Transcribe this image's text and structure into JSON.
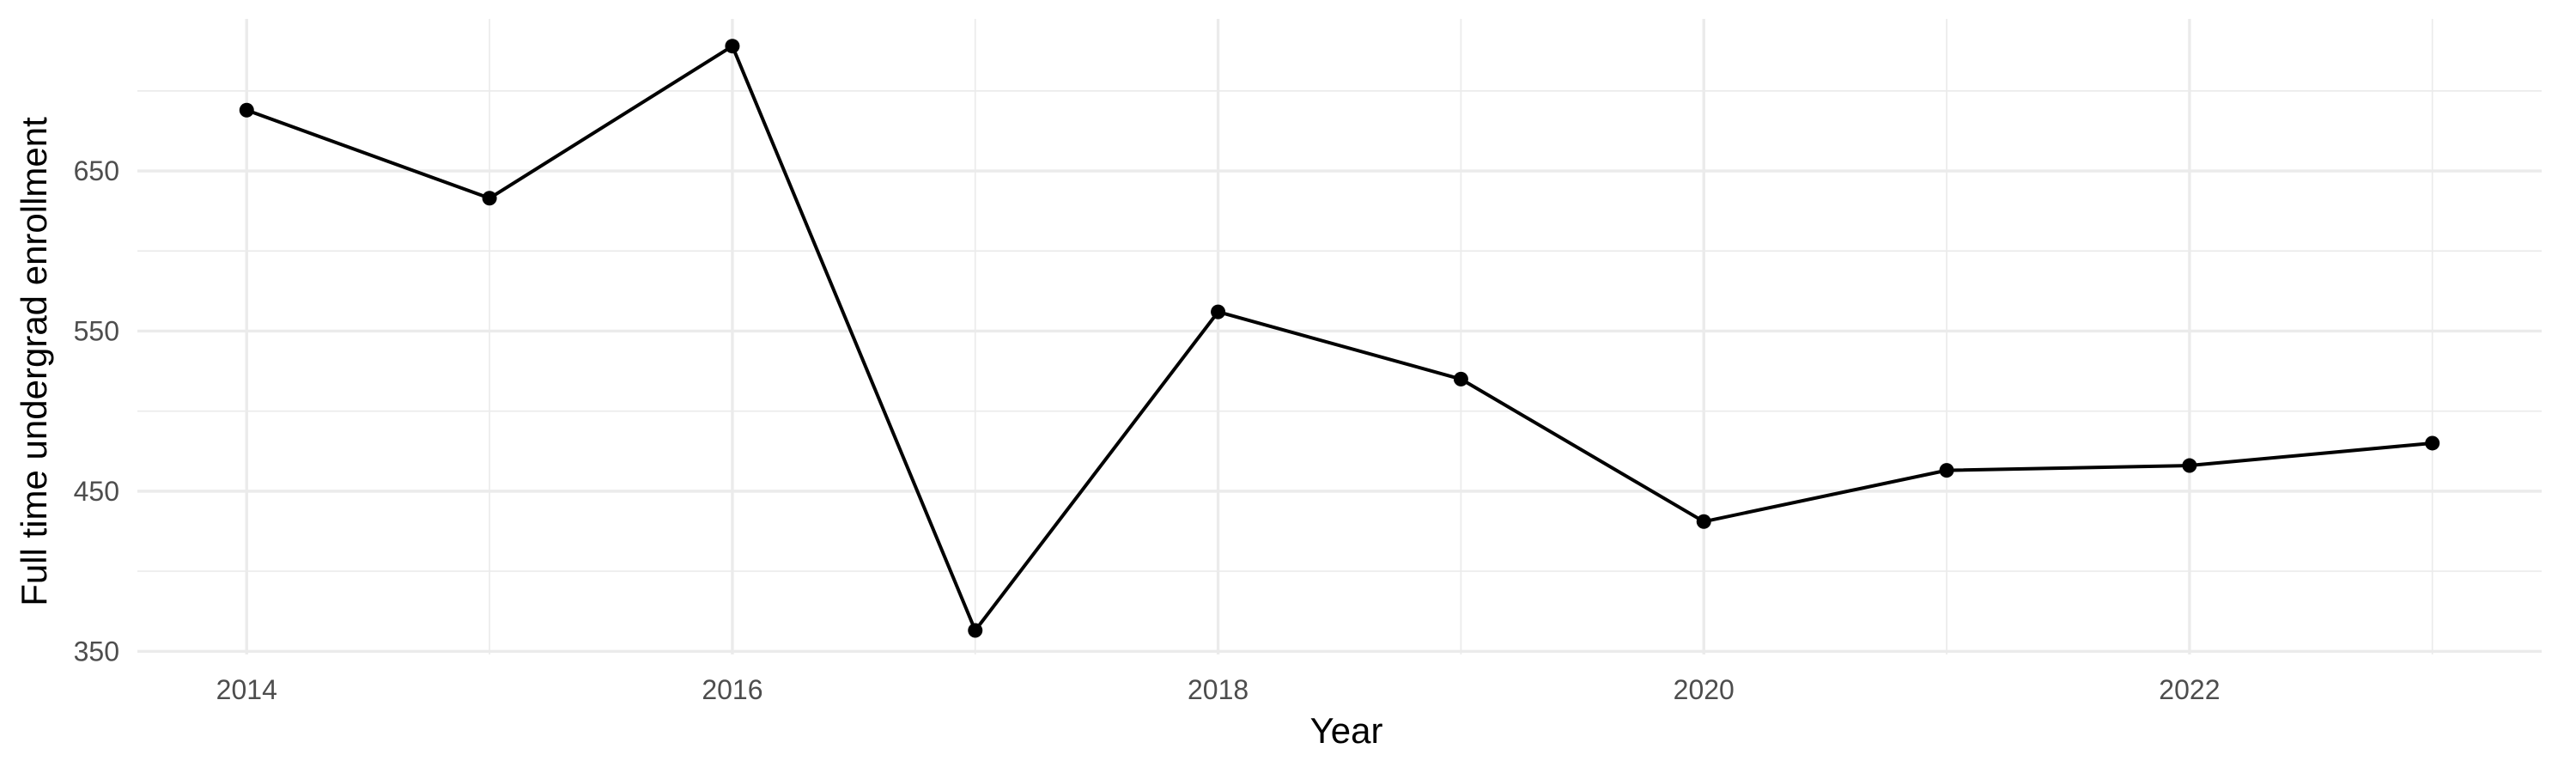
{
  "chart_data": {
    "type": "line",
    "title": "",
    "xlabel": "Year",
    "ylabel": "Full time undergrad enrollment",
    "x": [
      2014,
      2015,
      2016,
      2017,
      2018,
      2019,
      2020,
      2021,
      2022,
      2023
    ],
    "series": [
      {
        "values": [
          688,
          633,
          728,
          363,
          562,
          520,
          431,
          463,
          466,
          480
        ]
      }
    ],
    "x_ticks": [
      2014,
      2016,
      2018,
      2020,
      2022
    ],
    "x_tick_labels": [
      "2014",
      "2016",
      "2018",
      "2020",
      "2022"
    ],
    "y_ticks": [
      350,
      450,
      550,
      650
    ],
    "y_tick_labels": [
      "350",
      "450",
      "550",
      "650"
    ],
    "xlim": [
      2013.55,
      2023.45
    ],
    "ylim": [
      348,
      745
    ],
    "grid": true,
    "legend": "none",
    "colors": {
      "line": "#000000",
      "points": "#000000",
      "grid": "#ebebeb",
      "tick_text": "#4d4d4d"
    }
  }
}
